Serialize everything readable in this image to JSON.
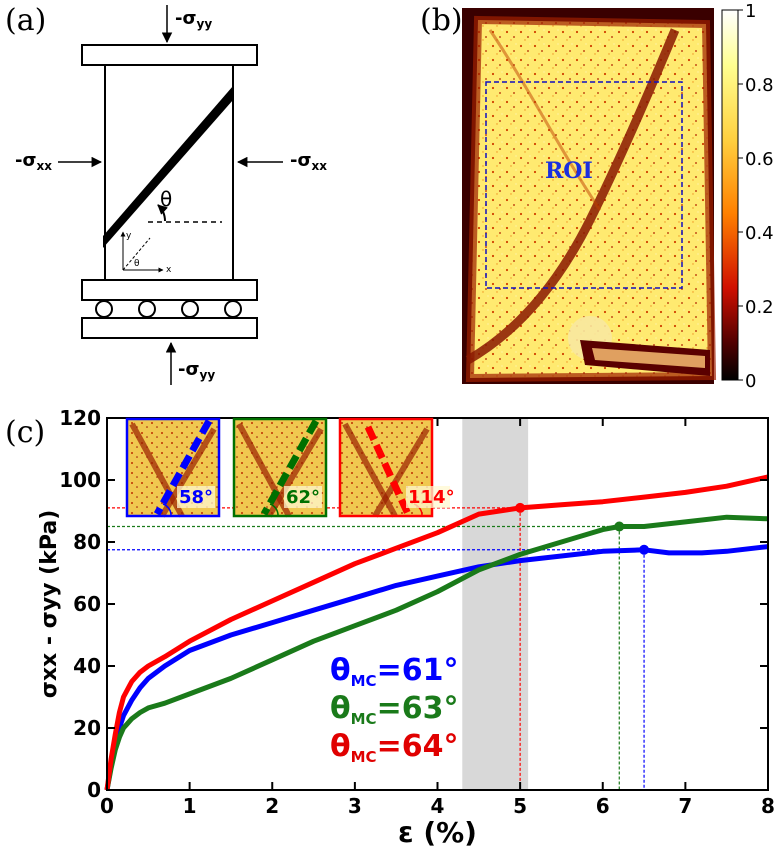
{
  "panel_a": {
    "label": "(a)",
    "sigma_yy_top": "-σyy",
    "sigma_yy_bottom": "-σyy",
    "sigma_xx_left": "-σxx",
    "sigma_xx_right": "-σxx",
    "theta": "θ",
    "axis_x": "x",
    "axis_y": "y",
    "axis_theta": "θ"
  },
  "panel_b": {
    "label": "(b)",
    "roi_label": "ROI",
    "colorbar": {
      "ticks": [
        "1",
        "0.8",
        "0.6",
        "0.4",
        "0.2",
        "0"
      ],
      "colors": [
        "#ffffff",
        "#ffffa0",
        "#ffd040",
        "#ff8000",
        "#e01000",
        "#600000",
        "#000000"
      ]
    }
  },
  "panel_c": {
    "label": "(c)",
    "insets": [
      {
        "angle": "58°",
        "color": "#0000ff"
      },
      {
        "angle": "62°",
        "color": "#007000"
      },
      {
        "angle": "114°",
        "color": "#ff0000"
      }
    ],
    "mc_labels": [
      {
        "prefix": "θ",
        "sub": "MC",
        "value": "=61°",
        "color": "#0000ff"
      },
      {
        "prefix": "θ",
        "sub": "MC",
        "value": "=63°",
        "color": "#1a7a1a"
      },
      {
        "prefix": "θ",
        "sub": "MC",
        "value": "=64°",
        "color": "#e00000"
      }
    ]
  },
  "chart_data": {
    "type": "line",
    "xlabel": "ε (%)",
    "ylabel": "σxx - σyy (kPa)",
    "xlim": [
      0,
      8
    ],
    "ylim": [
      0,
      120
    ],
    "xticks": [
      "0",
      "1",
      "2",
      "3",
      "4",
      "5",
      "6",
      "7",
      "8"
    ],
    "yticks": [
      "0",
      "20",
      "40",
      "60",
      "80",
      "100",
      "120"
    ],
    "shaded_band": [
      4.3,
      5.0
    ],
    "series": [
      {
        "name": "blue",
        "color": "#0000ff",
        "x": [
          0,
          0.05,
          0.1,
          0.15,
          0.2,
          0.3,
          0.4,
          0.5,
          0.7,
          1.0,
          1.5,
          2.0,
          2.5,
          3.0,
          3.5,
          4.0,
          4.5,
          5.0,
          5.5,
          6.0,
          6.5,
          6.8,
          7.2,
          7.5,
          8.0
        ],
        "y": [
          0,
          8,
          15,
          20,
          24,
          29,
          33,
          36,
          40,
          45,
          50,
          54,
          58,
          62,
          66,
          69,
          72,
          74,
          75.5,
          77,
          77.5,
          76.5,
          76.5,
          77,
          78.5
        ],
        "peak": {
          "x": 6.5,
          "y": 77.5
        }
      },
      {
        "name": "green",
        "color": "#1a7a1a",
        "x": [
          0,
          0.05,
          0.1,
          0.15,
          0.2,
          0.3,
          0.4,
          0.5,
          0.7,
          1.0,
          1.5,
          2.0,
          2.5,
          3.0,
          3.5,
          4.0,
          4.5,
          5.0,
          5.5,
          6.0,
          6.2,
          6.5,
          7.0,
          7.5,
          8.0
        ],
        "y": [
          0,
          7,
          13,
          17,
          20,
          23,
          25,
          26.5,
          28,
          31,
          36,
          42,
          48,
          53,
          58,
          64,
          71,
          76,
          80,
          84,
          85,
          85,
          86.5,
          88,
          87.5
        ],
        "peak": {
          "x": 6.2,
          "y": 85
        }
      },
      {
        "name": "red",
        "color": "#ff0000",
        "x": [
          0,
          0.05,
          0.1,
          0.15,
          0.2,
          0.3,
          0.4,
          0.5,
          0.7,
          1.0,
          1.5,
          2.0,
          2.5,
          3.0,
          3.5,
          4.0,
          4.5,
          5.0,
          5.5,
          6.0,
          6.5,
          7.0,
          7.5,
          8.0
        ],
        "y": [
          0,
          10,
          18,
          25,
          30,
          35,
          38,
          40,
          43,
          48,
          55,
          61,
          67,
          73,
          78,
          83,
          89,
          91,
          92,
          93,
          94.5,
          96,
          98,
          101
        ],
        "peak": {
          "x": 5.0,
          "y": 91
        }
      }
    ]
  }
}
